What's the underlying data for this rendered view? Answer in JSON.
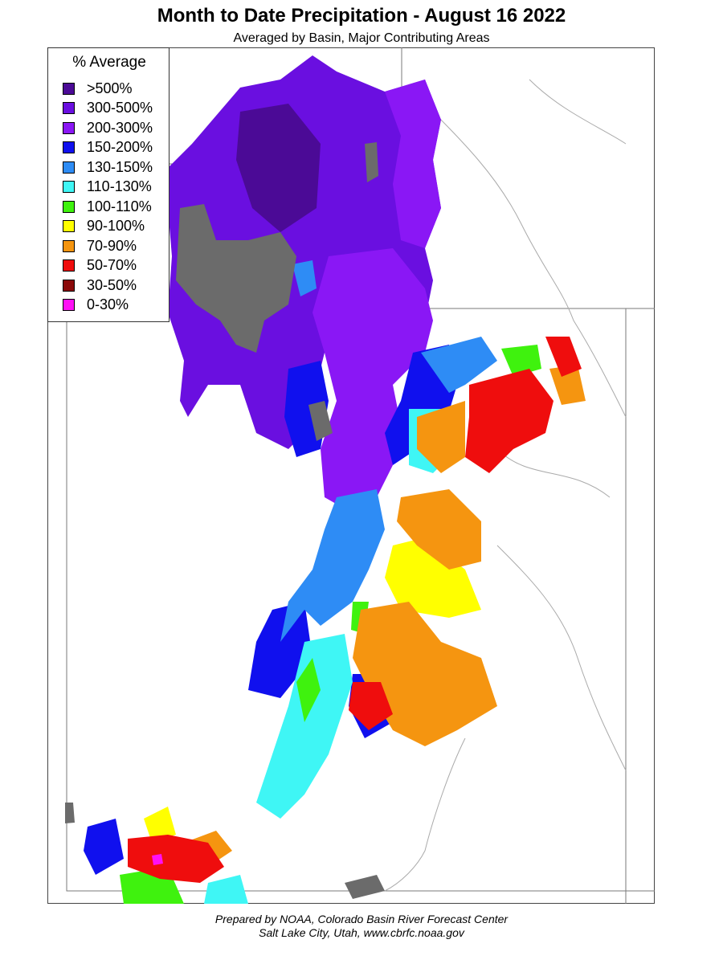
{
  "title": "Month to Date Precipitation - August 16 2022",
  "subtitle": "Averaged by Basin, Major Contributing Areas",
  "legend": {
    "title": "% Average",
    "items": [
      {
        "label": ">500%",
        "color": "#4b0a96"
      },
      {
        "label": "300-500%",
        "color": "#6a0fe0"
      },
      {
        "label": "200-300%",
        "color": "#8a17f5"
      },
      {
        "label": "150-200%",
        "color": "#1010ee"
      },
      {
        "label": "130-150%",
        "color": "#2e8cf5"
      },
      {
        "label": "110-130%",
        "color": "#3ff6f5"
      },
      {
        "label": "100-110%",
        "color": "#3ff20e"
      },
      {
        "label": "90-100%",
        "color": "#ffff00"
      },
      {
        "label": "70-90%",
        "color": "#f59510"
      },
      {
        "label": "50-70%",
        "color": "#ef0d0d"
      },
      {
        "label": "30-50%",
        "color": "#8b0a0a"
      },
      {
        "label": "0-30%",
        "color": "#ff10f5"
      }
    ]
  },
  "no_data_color": "#6b6b6b",
  "footer": {
    "line1": "Prepared by NOAA, Colorado Basin River Forecast Center",
    "line2": "Salt Lake City, Utah, www.cbrfc.noaa.gov"
  }
}
